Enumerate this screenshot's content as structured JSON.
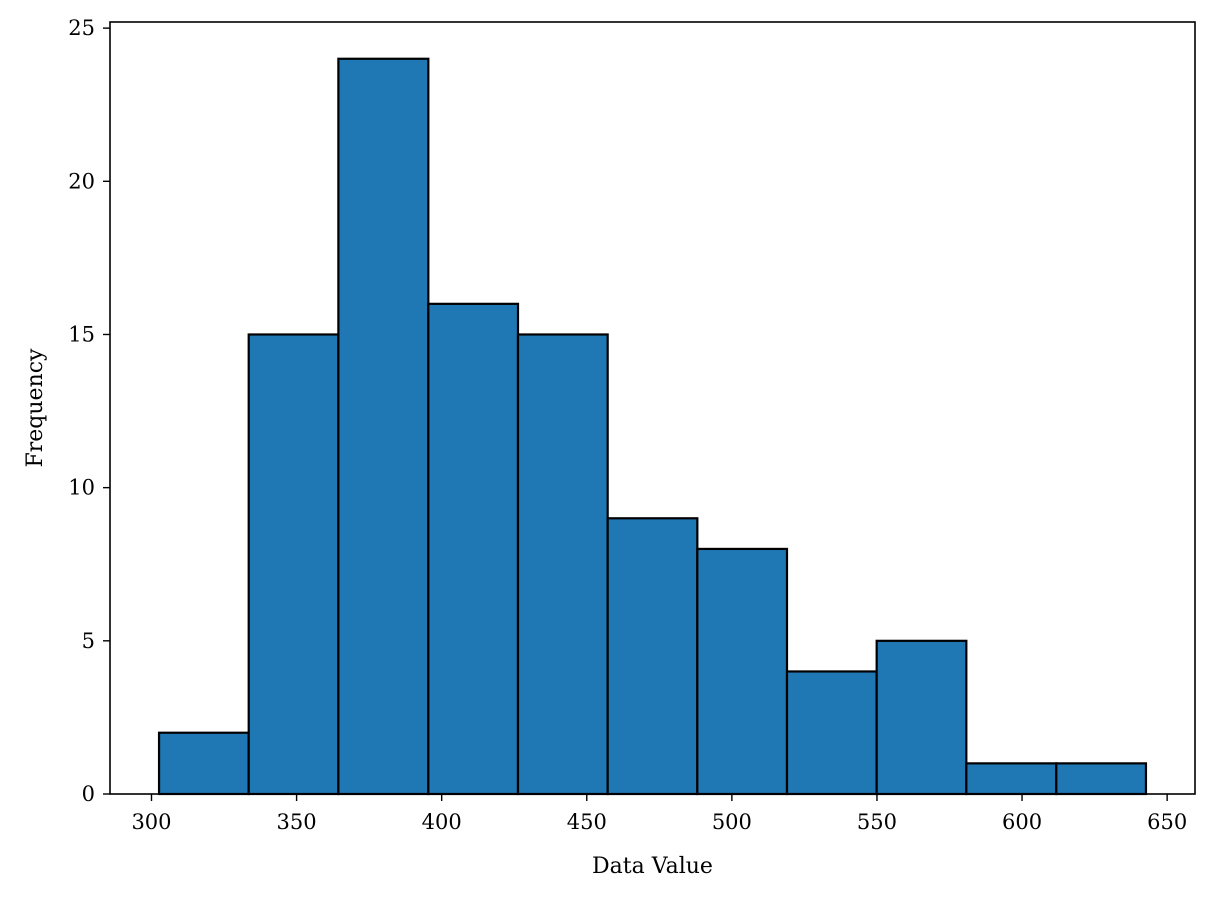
{
  "chart_data": {
    "type": "bar",
    "subtype": "histogram",
    "bins": [
      {
        "x0": 302.6,
        "x1": 333.5,
        "count": 2
      },
      {
        "x0": 333.5,
        "x1": 364.4,
        "count": 15
      },
      {
        "x0": 364.4,
        "x1": 395.4,
        "count": 24
      },
      {
        "x0": 395.4,
        "x1": 426.3,
        "count": 16
      },
      {
        "x0": 426.3,
        "x1": 457.2,
        "count": 15
      },
      {
        "x0": 457.2,
        "x1": 488.1,
        "count": 9
      },
      {
        "x0": 488.1,
        "x1": 519.0,
        "count": 8
      },
      {
        "x0": 519.0,
        "x1": 549.9,
        "count": 4
      },
      {
        "x0": 549.9,
        "x1": 580.8,
        "count": 5
      },
      {
        "x0": 580.8,
        "x1": 611.8,
        "count": 1
      },
      {
        "x0": 611.8,
        "x1": 642.7,
        "count": 1
      }
    ],
    "xlabel": "Data Value",
    "ylabel": "Frequency",
    "xlim": [
      285.7,
      659.6
    ],
    "ylim": [
      0,
      25.2
    ],
    "xticks": [
      "300",
      "350",
      "400",
      "450",
      "500",
      "550",
      "600",
      "650"
    ],
    "yticks": [
      "0",
      "5",
      "10",
      "15",
      "20",
      "25"
    ],
    "bar_color": "#1f77b4",
    "edge_color": "#000000",
    "grid": false,
    "legend": false
  }
}
